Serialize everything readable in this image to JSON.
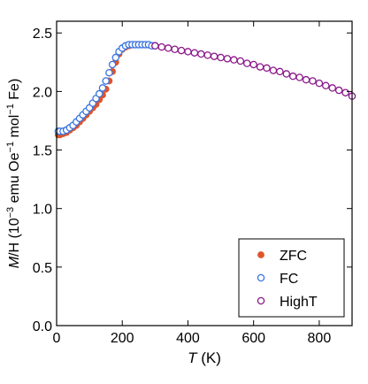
{
  "chart_data": {
    "type": "scatter",
    "xlabel_italic": "T",
    "xlabel_rest": " (K)",
    "ylabel_italic": "M",
    "ylabel_rest": "/H (10",
    "ylabel_sup1": "−3",
    "ylabel_mid": " emu Oe",
    "ylabel_sup2": "−1",
    "ylabel_mol": " mol",
    "ylabel_sup3": "−1",
    "ylabel_end": " Fe)",
    "xlim": [
      0,
      900
    ],
    "ylim": [
      0.0,
      2.6
    ],
    "x_ticks": [
      0,
      200,
      400,
      600,
      800
    ],
    "x_tick_labels": [
      "0",
      "200",
      "400",
      "600",
      "800"
    ],
    "y_ticks": [
      0.0,
      0.5,
      1.0,
      1.5,
      2.0,
      2.5
    ],
    "y_tick_labels": [
      "0.0",
      "0.5",
      "1.0",
      "1.5",
      "2.0",
      "2.5"
    ],
    "grid": false,
    "legend_position": "lower-right",
    "series": [
      {
        "name": "ZFC",
        "marker": "filled-circle",
        "color": "#e0542a",
        "x": [
          5,
          10,
          20,
          30,
          40,
          50,
          60,
          70,
          80,
          90,
          100,
          110,
          120,
          130,
          140,
          150,
          160,
          170,
          180,
          190,
          200,
          210,
          220,
          230,
          240,
          250,
          260,
          270,
          280,
          290,
          300
        ],
        "y": [
          1.63,
          1.63,
          1.64,
          1.65,
          1.67,
          1.69,
          1.71,
          1.74,
          1.77,
          1.8,
          1.83,
          1.86,
          1.89,
          1.93,
          1.97,
          2.02,
          2.09,
          2.17,
          2.25,
          2.32,
          2.36,
          2.38,
          2.39,
          2.4,
          2.4,
          2.4,
          2.4,
          2.4,
          2.4,
          2.39,
          2.39
        ]
      },
      {
        "name": "FC",
        "marker": "open-circle",
        "color": "#3a74e0",
        "x": [
          5,
          10,
          20,
          30,
          40,
          50,
          60,
          70,
          80,
          90,
          100,
          110,
          120,
          130,
          140,
          150,
          160,
          170,
          180,
          190,
          200,
          210,
          220,
          230,
          240,
          250,
          260,
          270,
          280,
          290,
          300
        ],
        "y": [
          1.66,
          1.66,
          1.66,
          1.67,
          1.69,
          1.71,
          1.74,
          1.77,
          1.8,
          1.83,
          1.86,
          1.9,
          1.94,
          1.98,
          2.03,
          2.09,
          2.16,
          2.23,
          2.29,
          2.34,
          2.37,
          2.39,
          2.4,
          2.4,
          2.4,
          2.4,
          2.4,
          2.4,
          2.4,
          2.39,
          2.39
        ]
      },
      {
        "name": "HighT",
        "marker": "open-circle",
        "color": "#8b1a8b",
        "x": [
          300,
          320,
          340,
          360,
          380,
          400,
          420,
          440,
          460,
          480,
          500,
          520,
          540,
          560,
          580,
          600,
          620,
          640,
          660,
          680,
          700,
          720,
          740,
          760,
          780,
          800,
          820,
          840,
          860,
          880,
          900
        ],
        "y": [
          2.39,
          2.38,
          2.37,
          2.36,
          2.35,
          2.34,
          2.33,
          2.32,
          2.31,
          2.3,
          2.29,
          2.28,
          2.27,
          2.26,
          2.24,
          2.23,
          2.21,
          2.2,
          2.18,
          2.17,
          2.15,
          2.13,
          2.12,
          2.1,
          2.09,
          2.07,
          2.05,
          2.03,
          2.01,
          1.99,
          1.96
        ]
      }
    ]
  }
}
